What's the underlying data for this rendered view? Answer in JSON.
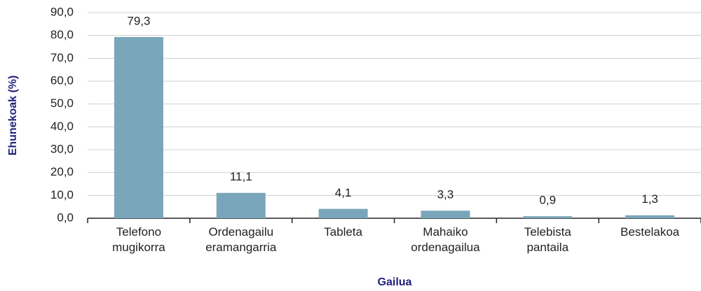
{
  "chart_data": {
    "type": "bar",
    "x_label": "Gailua",
    "y_label": "Ehunekoak (%)",
    "categories": [
      "Telefono\nmugikorra",
      "Ordenagailu\neramangarria",
      "Tableta",
      "Mahaiko\nordenagailua",
      "Telebista\npantaila",
      "Bestelakoa"
    ],
    "values": [
      79.3,
      11.1,
      4.1,
      3.3,
      0.9,
      1.3
    ],
    "value_labels": [
      "79,3",
      "11,1",
      "4,1",
      "3,3",
      "0,9",
      "1,3"
    ],
    "color": "#7aa6bb",
    "ylim": [
      0,
      90
    ],
    "yticks": [
      {
        "value": 0,
        "label": "0,0"
      },
      {
        "value": 10,
        "label": "10,0"
      },
      {
        "value": 20,
        "label": "20,0"
      },
      {
        "value": 30,
        "label": "30,0"
      },
      {
        "value": 40,
        "label": "40,0"
      },
      {
        "value": 50,
        "label": "50,0"
      },
      {
        "value": 60,
        "label": "60,0"
      },
      {
        "value": 70,
        "label": "70,0"
      },
      {
        "value": 80,
        "label": "80,0"
      },
      {
        "value": 90,
        "label": "90,0"
      }
    ],
    "grid": true
  }
}
